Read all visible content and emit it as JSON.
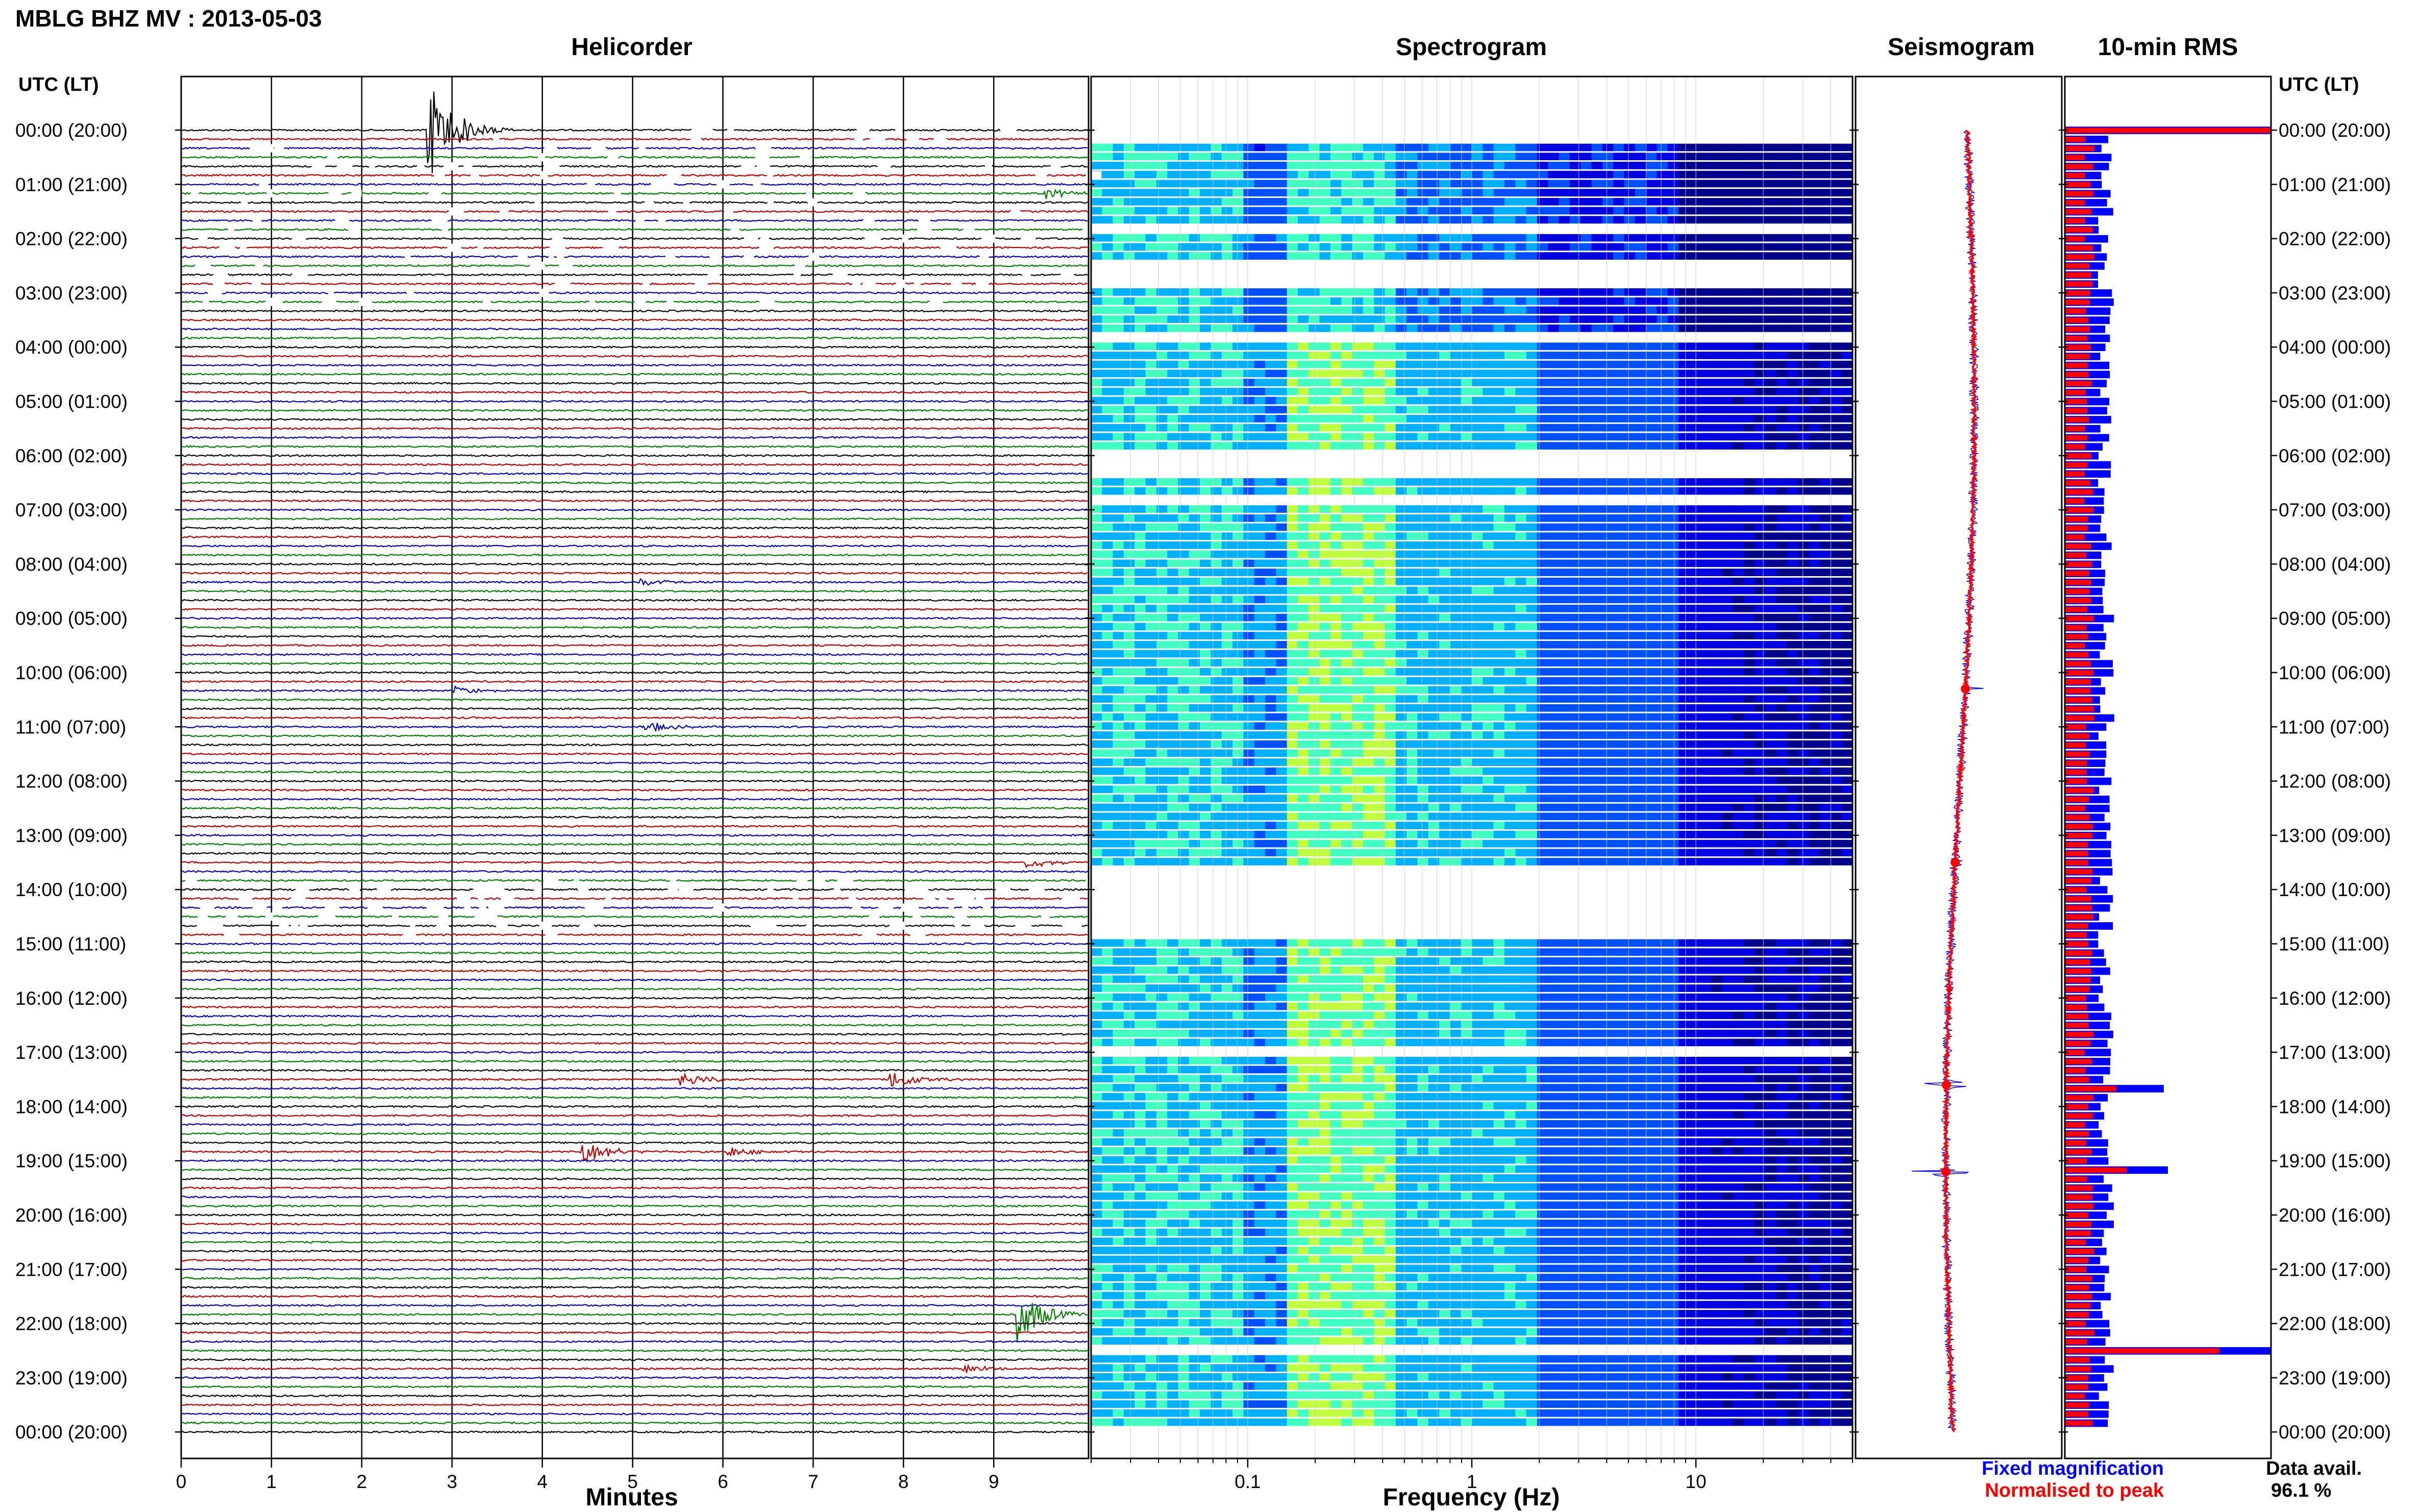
{
  "figure": {
    "title": "MBLG BHZ MV : 2013-05-03",
    "legend": {
      "fixed": "Fixed magnification",
      "normalised": "Normalised to peak",
      "fixed_color": "#0000ff",
      "normalised_color": "#ff0000"
    },
    "availability": {
      "label": "Data avail.",
      "value": "96.1 %"
    },
    "utc_label_left": "UTC (LT)",
    "utc_label_right": "UTC (LT)",
    "hour_labels": [
      "00:00 (20:00)",
      "01:00 (21:00)",
      "02:00 (22:00)",
      "03:00 (23:00)",
      "04:00 (00:00)",
      "05:00 (01:00)",
      "06:00 (02:00)",
      "07:00 (03:00)",
      "08:00 (04:00)",
      "09:00 (05:00)",
      "10:00 (06:00)",
      "11:00 (07:00)",
      "12:00 (08:00)",
      "13:00 (09:00)",
      "14:00 (10:00)",
      "15:00 (11:00)",
      "16:00 (12:00)",
      "17:00 (13:00)",
      "18:00 (14:00)",
      "19:00 (15:00)",
      "20:00 (16:00)",
      "21:00 (17:00)",
      "22:00 (18:00)",
      "23:00 (19:00)",
      "00:00 (20:00)"
    ]
  },
  "chart_data": [
    {
      "type": "line",
      "title": "Helicorder",
      "xlabel": "Minutes",
      "xlim": [
        0,
        10
      ],
      "x_ticks": [
        "0",
        "1",
        "2",
        "3",
        "4",
        "5",
        "6",
        "7",
        "8",
        "9"
      ],
      "rows_per_hour": 6,
      "row_colors": [
        "#000000",
        "#c00000",
        "#0000c0",
        "#008000"
      ],
      "events": [
        {
          "hour": 0.0,
          "minute": 2.7,
          "amp": 6.5
        },
        {
          "hour": 1.2,
          "minute": 9.5,
          "amp": 0.6
        },
        {
          "hour": 8.3,
          "minute": 5.0,
          "amp": 0.5
        },
        {
          "hour": 10.3,
          "minute": 3.0,
          "amp": 0.5
        },
        {
          "hour": 11.0,
          "minute": 5.1,
          "amp": 0.6
        },
        {
          "hour": 13.5,
          "minute": 9.3,
          "amp": 0.6
        },
        {
          "hour": 17.5,
          "minute": 7.8,
          "amp": 1.2
        },
        {
          "hour": 17.5,
          "minute": 5.5,
          "amp": 0.8
        },
        {
          "hour": 18.8,
          "minute": 4.4,
          "amp": 1.4
        },
        {
          "hour": 18.8,
          "minute": 6.0,
          "amp": 0.6
        },
        {
          "hour": 21.8,
          "minute": 9.2,
          "amp": 3.0
        },
        {
          "hour": 22.8,
          "minute": 8.6,
          "amp": 0.5
        }
      ]
    },
    {
      "type": "heatmap",
      "title": "Spectrogram",
      "xlabel": "Frequency (Hz)",
      "x_scale": "log",
      "xlim": [
        0.02,
        50
      ],
      "x_ticks": [
        "0.1",
        "1",
        "10"
      ],
      "colormap": [
        "#00008c",
        "#0000e0",
        "#0050ff",
        "#00b0ff",
        "#40ffc0",
        "#c0ff40"
      ],
      "gaps_hours": [
        [
          1.75,
          2.0
        ],
        [
          2.5,
          3.0
        ],
        [
          3.7,
          4.0
        ],
        [
          5.9,
          6.4
        ],
        [
          6.8,
          7.0
        ],
        [
          13.6,
          15.0
        ],
        [
          16.95,
          17.1
        ],
        [
          22.5,
          22.6
        ]
      ]
    },
    {
      "type": "line",
      "title": "Seismogram",
      "series": [
        {
          "name": "Fixed magnification",
          "color": "#0000ff"
        },
        {
          "name": "Normalised to peak",
          "color": "#ff0000"
        }
      ],
      "peaks": [
        {
          "hour": 10.3,
          "amp": 0.25
        },
        {
          "hour": 13.5,
          "amp": 0.2
        },
        {
          "hour": 17.6,
          "amp": 0.8
        },
        {
          "hour": 19.2,
          "amp": 0.65
        }
      ]
    },
    {
      "type": "bar",
      "title": "10-min RMS",
      "series": [
        {
          "name": "Fixed magnification",
          "color": "#0000ff"
        },
        {
          "name": "Normalised to peak",
          "color": "#ff0000"
        }
      ],
      "spikes": [
        {
          "hour": 0.05,
          "blue": 1.0,
          "red": 1.0
        },
        {
          "hour": 17.6,
          "blue": 0.48,
          "red": 0.25
        },
        {
          "hour": 19.2,
          "blue": 0.5,
          "red": 0.3
        },
        {
          "hour": 22.5,
          "blue": 1.0,
          "red": 0.75
        }
      ],
      "baseline_blue": 0.2,
      "baseline_red": 0.12
    }
  ]
}
